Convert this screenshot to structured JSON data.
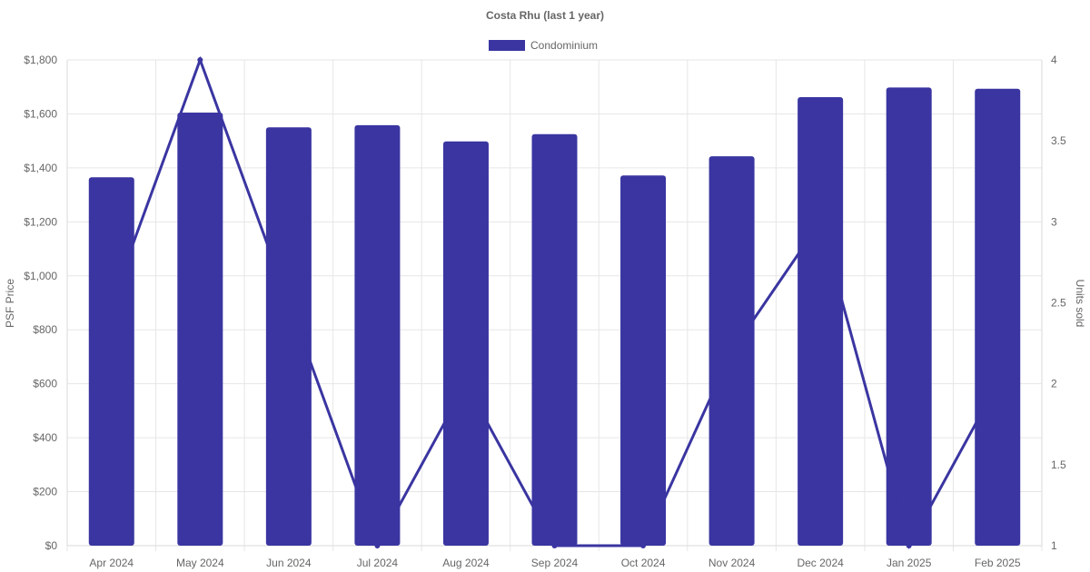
{
  "chart_data": {
    "type": "bar",
    "title": "Costa Rhu (last 1 year)",
    "categories": [
      "Apr 2024",
      "May 2024",
      "Jun 2024",
      "Jul 2024",
      "Aug 2024",
      "Sep 2024",
      "Oct 2024",
      "Nov 2024",
      "Dec 2024",
      "Jan 2025",
      "Feb 2025"
    ],
    "legend": {
      "position": "top",
      "entries": [
        "Condominium"
      ]
    },
    "series": [
      {
        "name": "Condominium",
        "kind": "bar",
        "axis": "left",
        "color": "#3a35a1",
        "values": [
          1365,
          1605,
          1550,
          1558,
          1498,
          1525,
          1372,
          1443,
          1662,
          1698,
          1693
        ]
      },
      {
        "kind": "line",
        "axis": "right",
        "color": "#3a35a1",
        "values": [
          2.5,
          4,
          2.5,
          1,
          2,
          1,
          1,
          2.2,
          3,
          1,
          2
        ]
      }
    ],
    "ylabel": "PSF Price",
    "y2label": "Units sold",
    "ylim": [
      0,
      1800
    ],
    "yticks": [
      "$0",
      "$200",
      "$400",
      "$600",
      "$800",
      "$1,000",
      "$1,200",
      "$1,400",
      "$1,600",
      "$1,800"
    ],
    "y2lim": [
      1,
      4
    ],
    "y2ticks": [
      "1",
      "1.5",
      "2",
      "2.5",
      "3",
      "3.5",
      "4"
    ],
    "grid": true
  }
}
